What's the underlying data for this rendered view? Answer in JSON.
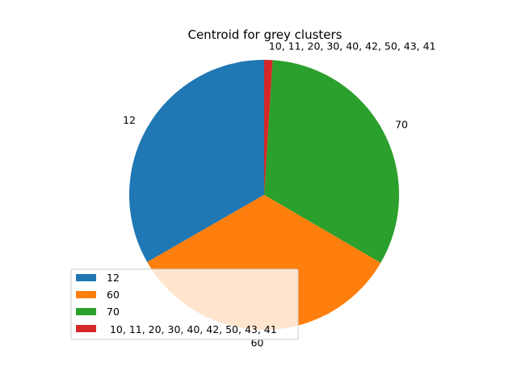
{
  "chart_data": {
    "type": "pie",
    "title": "Centroid for grey clusters",
    "labels": [
      "12",
      "60",
      "70",
      " 10, 11, 20, 30, 40, 42, 50, 43, 41"
    ],
    "values": [
      33.3,
      33.3,
      32.4,
      1.0
    ],
    "colors": [
      "#1f77b4",
      "#ff7f0e",
      "#2ca02c",
      "#d62728"
    ],
    "start_angle_deg": 90,
    "direction": "counterclockwise",
    "legend": {
      "placement": "lower-left",
      "entries": [
        "12",
        "60",
        "70",
        " 10, 11, 20, 30, 40, 42, 50, 43, 41"
      ]
    }
  }
}
